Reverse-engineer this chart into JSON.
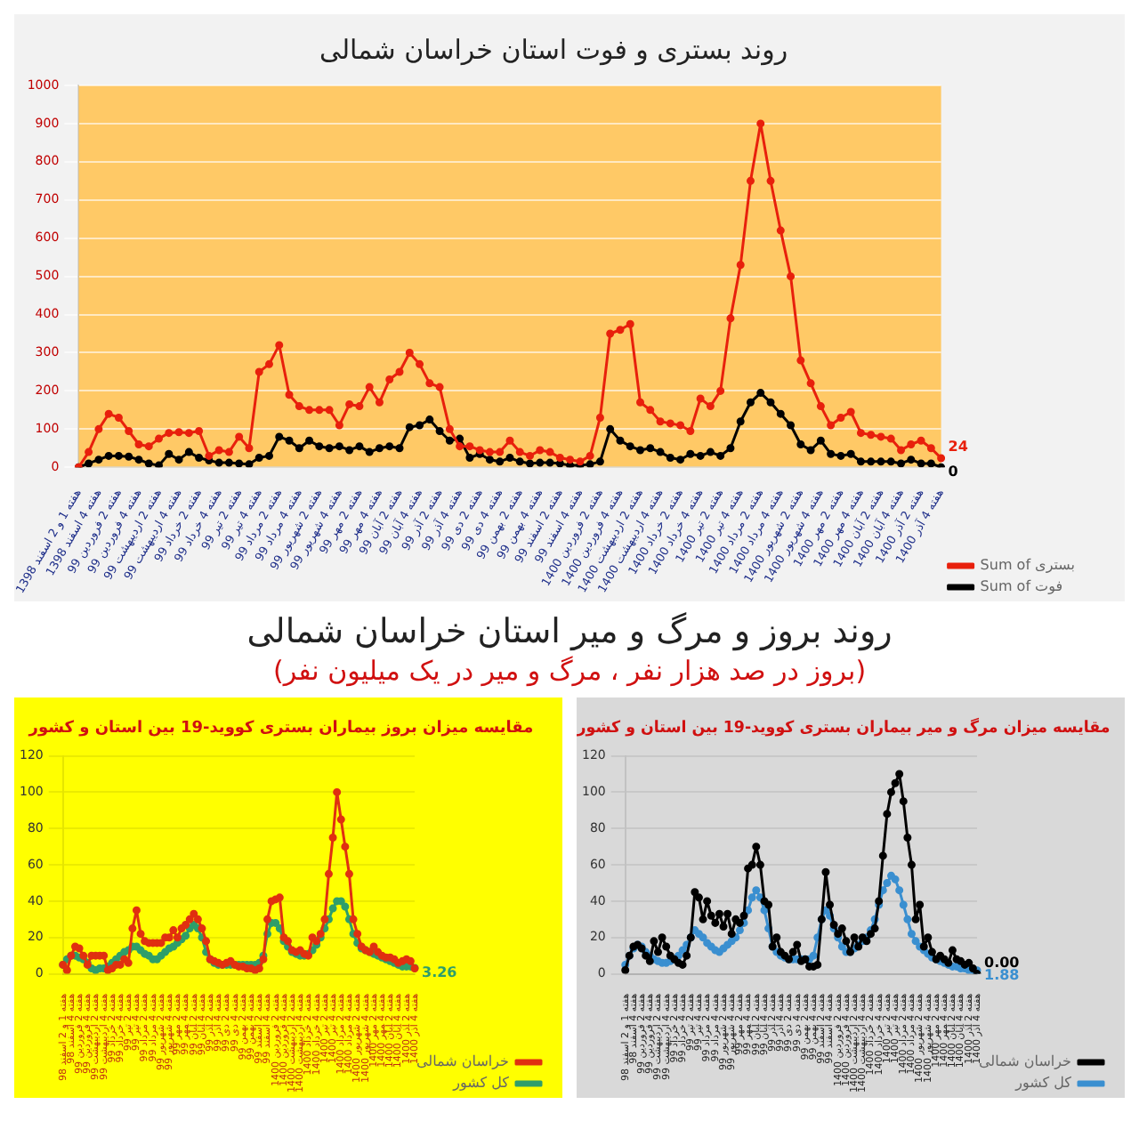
{
  "chart_data": [
    {
      "type": "line",
      "title": "روند بستری و فوت استان خراسان شمالی",
      "categories": [
        "هفته 1 و 2 اسفند 1398",
        null,
        "هفته 4 اسفند 1398",
        null,
        "هفته 2 فروردین 99",
        null,
        "هفته 4 فروردین 99",
        null,
        "هفته 2 اردیبهشت 99",
        null,
        "هفته 4 اردیبهشت 99",
        null,
        "هفته 2 خرداد 99",
        null,
        "هفته 4 خرداد 99",
        null,
        "هفته 2 تیر 99",
        null,
        "هفته 4 تیر 99",
        null,
        "هفته 2 مرداد 99",
        null,
        "هفته 4 مرداد 99",
        null,
        "هفته 2 شهریور 99",
        null,
        "هفته 4 شهریور 99",
        null,
        "هفته 2 مهر 99",
        null,
        "هفته 4 مهر 99",
        null,
        "هفته 2 آبان 99",
        null,
        "هفته 4 آبان 99",
        null,
        "هفته 2 آذر 99",
        null,
        "هفته 4 آذر 99",
        null,
        "هفته 2 دی 99",
        null,
        "هفته 4 دی 99",
        null,
        "هفته 2 بهمن 99",
        null,
        "هفته 4 بهمن 99",
        null,
        "هفته 2 اسفند 99",
        null,
        "هفته 4 اسفند 99",
        null,
        "هفته 2 فروردین 1400",
        null,
        "هفته 4 فروردین 1400",
        null,
        "هفته 2 اردیبهشت 1400",
        null,
        "هفته 4 اردیبهشت 1400",
        null,
        "هفته 2 خرداد 1400",
        null,
        "هفته 4 خرداد 1400",
        null,
        "هفته 2 تیر 1400",
        null,
        "هفته 4 تیر 1400",
        null,
        "هفته 2 مرداد 1400",
        null,
        "هفته 4 مرداد 1400",
        null,
        "هفته 2 شهریور 1400",
        null,
        "هفته 4 شهریور 1400",
        null,
        "هفته 2 مهر 1400",
        null,
        "هفته 4 مهر 1400",
        null,
        "هفته 2 آبان 1400",
        null,
        "هفته 4 آبان 1400",
        null,
        "هفته 2 آذر 1400",
        null,
        "هفته 4 آذر 1400"
      ],
      "ylim": [
        0,
        1000
      ],
      "yticks": [
        0,
        100,
        200,
        300,
        400,
        500,
        600,
        700,
        800,
        900,
        1000
      ],
      "grid": "y",
      "legend": "bottom right",
      "marker": "circle",
      "series": [
        {
          "name": "Sum of بستری",
          "color": "#e8200c",
          "values": [
            0,
            40,
            100,
            140,
            130,
            95,
            60,
            55,
            75,
            90,
            92,
            90,
            95,
            30,
            45,
            40,
            80,
            50,
            250,
            270,
            320,
            190,
            160,
            150,
            150,
            150,
            110,
            165,
            160,
            210,
            170,
            230,
            250,
            300,
            270,
            220,
            210,
            100,
            55,
            55,
            45,
            40,
            40,
            70,
            40,
            30,
            45,
            40,
            25,
            20,
            15,
            30,
            130,
            350,
            360,
            375,
            170,
            150,
            120,
            115,
            110,
            95,
            180,
            160,
            200,
            390,
            530,
            750,
            900,
            750,
            620,
            500,
            280,
            220,
            160,
            110,
            130,
            145,
            90,
            85,
            80,
            75,
            45,
            60,
            70,
            50,
            24
          ],
          "value_labels": [
            null,
            null,
            null,
            null,
            null,
            null,
            null,
            null,
            null,
            null,
            null,
            null,
            null,
            null,
            null,
            null,
            null,
            null,
            null,
            null,
            null,
            null,
            null,
            null,
            null,
            null,
            null,
            null,
            null,
            null,
            null,
            null,
            null,
            null,
            null,
            null,
            null,
            null,
            null,
            null,
            null,
            null,
            null,
            null,
            null,
            null,
            null,
            null,
            null,
            null,
            null,
            null,
            null,
            null,
            null,
            null,
            null,
            null,
            null,
            null,
            null,
            null,
            null,
            null,
            null,
            null,
            null,
            null,
            null,
            null,
            null,
            null,
            null,
            null,
            null,
            null,
            null,
            null,
            null,
            null,
            null,
            null,
            null,
            null,
            null,
            null,
            "24"
          ]
        },
        {
          "name": "Sum of فوت",
          "color": "#000000",
          "values": [
            0,
            10,
            20,
            30,
            30,
            28,
            20,
            10,
            5,
            35,
            20,
            40,
            25,
            18,
            12,
            12,
            10,
            8,
            25,
            30,
            80,
            70,
            50,
            70,
            55,
            50,
            55,
            45,
            55,
            40,
            50,
            55,
            50,
            105,
            110,
            125,
            95,
            70,
            75,
            25,
            35,
            20,
            15,
            25,
            15,
            10,
            12,
            12,
            10,
            5,
            5,
            8,
            15,
            100,
            70,
            55,
            45,
            50,
            40,
            25,
            20,
            35,
            30,
            40,
            30,
            50,
            120,
            170,
            195,
            170,
            140,
            110,
            60,
            45,
            70,
            35,
            30,
            35,
            15,
            15,
            15,
            15,
            10,
            20,
            10,
            10,
            0
          ],
          "value_labels": [
            null,
            null,
            null,
            null,
            null,
            null,
            null,
            null,
            null,
            null,
            null,
            null,
            null,
            null,
            null,
            null,
            null,
            null,
            null,
            null,
            null,
            null,
            null,
            null,
            null,
            null,
            null,
            null,
            null,
            null,
            null,
            null,
            null,
            null,
            null,
            null,
            null,
            null,
            null,
            null,
            null,
            null,
            null,
            null,
            null,
            null,
            null,
            null,
            null,
            null,
            null,
            null,
            null,
            null,
            null,
            null,
            null,
            null,
            null,
            null,
            null,
            null,
            null,
            null,
            null,
            null,
            null,
            null,
            null,
            null,
            null,
            null,
            null,
            null,
            null,
            null,
            null,
            null,
            null,
            null,
            null,
            null,
            null,
            null,
            null,
            null,
            "0"
          ]
        }
      ]
    },
    {
      "type": "other",
      "title": "روند بروز و مرگ و میر استان خراسان شمالی",
      "subtitle": "(بروز در صد هزار نفر ، مرگ و میر در یک میلیون نفر)"
    },
    {
      "type": "line",
      "title": "مقایسه میزان بروز بیماران بستری کووید-19 بین استان و کشور",
      "categories": [
        "هفته 1 و 2 اسفند 98",
        null,
        "هفته 4 اسفند 98",
        null,
        "هفته 2 فروردین 99",
        null,
        "هفته 4 فروردین 99",
        null,
        "هفته 2 اردیبهشت 99",
        null,
        "هفته 4 اردیبهشت 99",
        null,
        "هفته 2 خرداد 99",
        null,
        "هفته 4 خرداد 99",
        null,
        "هفته 2 تیر 99",
        null,
        "هفته 4 تیر 99",
        null,
        "هفته 2 مرداد 99",
        null,
        "هفته 4 مرداد 99",
        null,
        "هفته 2 شهریور 99",
        null,
        "هفته 4 شهریور 99",
        null,
        "هفته 2 مهر 99",
        null,
        "هفته 4 مهر 99",
        null,
        "هفته 2 آبان 99",
        null,
        "هفته 4 آبان 99",
        null,
        "هفته 2 آذر 99",
        null,
        "هفته 4 آذر 99",
        null,
        "هفته 2 دی 99",
        null,
        "هفته 4 دی 99",
        null,
        "هفته 2 بهمن 99",
        null,
        "هفته 4 بهمن 99",
        null,
        "هفته 2 اسفند 99",
        null,
        "هفته 4 اسفند 99",
        null,
        "هفته 2 فروردین 1400",
        null,
        "هفته 4 فروردین 1400",
        null,
        "هفته 2 اردیبهشت 1400",
        null,
        "هفته 4 اردیبهشت 1400",
        null,
        "هفته 2 خرداد 1400",
        null,
        "هفته 4 خرداد 1400",
        null,
        "هفته 2 تیر 1400",
        null,
        "هفته 4 تیر 1400",
        null,
        "هفته 2 مرداد 1400",
        null,
        "هفته 4 مرداد 1400",
        null,
        "هفته 2 شهریور 1400",
        null,
        "هفته 4 شهریور 1400",
        null,
        "هفته 2 مهر 1400",
        null,
        "هفته 4 مهر 1400",
        null,
        "هفته 2 آبان 1400",
        null,
        "هفته 4 آبان 1400",
        null,
        "هفته 2 آذر 1400",
        null,
        "هفته 4 آذر 1400"
      ],
      "ylim": [
        0,
        120
      ],
      "yticks": [
        0,
        20,
        40,
        60,
        80,
        100,
        120
      ],
      "grid": "y",
      "legend": "bottom right",
      "marker": "circle",
      "series": [
        {
          "name": "خراسان شمالی",
          "color": "#e03010",
          "values": [
            5,
            2,
            10,
            15,
            14,
            10,
            5,
            10,
            10,
            10,
            10,
            2,
            3,
            5,
            5,
            8,
            6,
            25,
            35,
            22,
            18,
            17,
            17,
            17,
            17,
            20,
            20,
            24,
            20,
            25,
            27,
            30,
            33,
            30,
            25,
            18,
            8,
            7,
            6,
            5,
            6,
            7,
            5,
            4,
            4,
            3,
            3,
            2,
            3,
            8,
            30,
            40,
            41,
            42,
            20,
            18,
            13,
            12,
            13,
            11,
            10,
            20,
            18,
            22,
            30,
            55,
            75,
            100,
            85,
            70,
            55,
            30,
            22,
            15,
            13,
            12,
            15,
            12,
            10,
            9,
            9,
            8,
            6,
            7,
            8,
            7,
            3
          ]
        },
        {
          "name": "کل کشور",
          "color": "#2e9e6a",
          "values": [
            5,
            8,
            10,
            10,
            9,
            8,
            6,
            3,
            2,
            3,
            3,
            4,
            6,
            8,
            10,
            12,
            13,
            15,
            15,
            13,
            11,
            10,
            8,
            8,
            10,
            12,
            14,
            15,
            17,
            19,
            21,
            25,
            27,
            25,
            20,
            12,
            8,
            6,
            5,
            5,
            5,
            5,
            5,
            5,
            5,
            5,
            5,
            5,
            6,
            10,
            22,
            28,
            28,
            25,
            18,
            15,
            12,
            11,
            10,
            10,
            11,
            13,
            16,
            20,
            25,
            30,
            36,
            40,
            40,
            37,
            30,
            22,
            17,
            14,
            13,
            12,
            11,
            10,
            9,
            8,
            7,
            6,
            5,
            4,
            4,
            4,
            3.26
          ],
          "value_labels": [
            null,
            null,
            null,
            null,
            null,
            null,
            null,
            null,
            null,
            null,
            null,
            null,
            null,
            null,
            null,
            null,
            null,
            null,
            null,
            null,
            null,
            null,
            null,
            null,
            null,
            null,
            null,
            null,
            null,
            null,
            null,
            null,
            null,
            null,
            null,
            null,
            null,
            null,
            null,
            null,
            null,
            null,
            null,
            null,
            null,
            null,
            null,
            null,
            null,
            null,
            null,
            null,
            null,
            null,
            null,
            null,
            null,
            null,
            null,
            null,
            null,
            null,
            null,
            null,
            null,
            null,
            null,
            null,
            null,
            null,
            null,
            null,
            null,
            null,
            null,
            null,
            null,
            null,
            null,
            null,
            null,
            null,
            null,
            null,
            null,
            null,
            "3.26"
          ]
        }
      ]
    },
    {
      "type": "line",
      "title": "مقایسه میزان مرگ و میر بیماران بستری کووید-19 بین استان و کشور",
      "categories": [
        "هفته 1 و 2 اسفند 98",
        null,
        "هفته 4 اسفند 98",
        null,
        "هفته 2 فروردین 99",
        null,
        "هفته 4 فروردین 99",
        null,
        "هفته 2 اردیبهشت 99",
        null,
        "هفته 4 اردیبهشت 99",
        null,
        "هفته 2 خرداد 99",
        null,
        "هفته 4 خرداد 99",
        null,
        "هفته 2 تیر 99",
        null,
        "هفته 4 تیر 99",
        null,
        "هفته 2 مرداد 99",
        null,
        "هفته 4 مرداد 99",
        null,
        "هفته 2 شهریور 99",
        null,
        "هفته 4 شهریور 99",
        null,
        "هفته 2 مهر 99",
        null,
        "هفته 4 مهر 99",
        null,
        "هفته 2 آبان 99",
        null,
        "هفته 4 آبان 99",
        null,
        "هفته 2 آذر 99",
        null,
        "هفته 4 آذر 99",
        null,
        "هفته 2 دی 99",
        null,
        "هفته 4 دی 99",
        null,
        "هفته 2 بهمن 99",
        null,
        "هفته 4 بهمن 99",
        null,
        "هفته 2 اسفند 99",
        null,
        "هفته 4 اسفند 99",
        null,
        "هفته 2 فروردین 1400",
        null,
        "هفته 4 فروردین 1400",
        null,
        "هفته 2 اردیبهشت 1400",
        null,
        "هفته 4 اردیبهشت 1400",
        null,
        "هفته 2 خرداد 1400",
        null,
        "هفته 4 خرداد 1400",
        null,
        "هفته 2 تیر 1400",
        null,
        "هفته 4 تیر 1400",
        null,
        "هفته 2 مرداد 1400",
        null,
        "هفته 4 مرداد 1400",
        null,
        "هفته 2 شهریور 1400",
        null,
        "هفته 4 شهریور 1400",
        null,
        "هفته 2 مهر 1400",
        null,
        "هفته 4 مهر 1400",
        null,
        "هفته 2 آبان 1400",
        null,
        "هفته 4 آبان 1400",
        null,
        "هفته 2 آذر 1400",
        null,
        "هفته 4 آذر 1400"
      ],
      "ylim": [
        0,
        120
      ],
      "yticks": [
        0,
        20,
        40,
        60,
        80,
        100,
        120
      ],
      "grid": "y",
      "legend": "bottom right",
      "marker": "circle",
      "series": [
        {
          "name": "خراسان شمالی",
          "color": "#000000",
          "values": [
            2,
            10,
            15,
            16,
            14,
            10,
            7,
            18,
            12,
            20,
            15,
            10,
            8,
            6,
            5,
            10,
            20,
            45,
            42,
            30,
            40,
            32,
            28,
            33,
            26,
            33,
            22,
            30,
            28,
            32,
            58,
            60,
            70,
            60,
            40,
            38,
            15,
            20,
            12,
            10,
            8,
            12,
            16,
            7,
            8,
            4,
            4,
            5,
            30,
            56,
            38,
            27,
            22,
            25,
            18,
            12,
            20,
            15,
            20,
            18,
            22,
            25,
            40,
            65,
            88,
            100,
            105,
            110,
            95,
            75,
            60,
            30,
            38,
            15,
            20,
            12,
            8,
            10,
            8,
            6,
            13,
            8,
            7,
            5,
            6,
            3,
            0
          ],
          "value_labels": [
            null,
            null,
            null,
            null,
            null,
            null,
            null,
            null,
            null,
            null,
            null,
            null,
            null,
            null,
            null,
            null,
            null,
            null,
            null,
            null,
            null,
            null,
            null,
            null,
            null,
            null,
            null,
            null,
            null,
            null,
            null,
            null,
            null,
            null,
            null,
            null,
            null,
            null,
            null,
            null,
            null,
            null,
            null,
            null,
            null,
            null,
            null,
            null,
            null,
            null,
            null,
            null,
            null,
            null,
            null,
            null,
            null,
            null,
            null,
            null,
            null,
            null,
            null,
            null,
            null,
            null,
            null,
            null,
            null,
            null,
            null,
            null,
            null,
            null,
            null,
            null,
            null,
            null,
            null,
            null,
            null,
            null,
            null,
            null,
            null,
            null,
            "0.00"
          ]
        },
        {
          "name": "کل کشور",
          "color": "#3a8fd0",
          "values": [
            5,
            10,
            14,
            16,
            15,
            12,
            10,
            8,
            7,
            6,
            6,
            7,
            8,
            10,
            13,
            16,
            20,
            24,
            22,
            20,
            17,
            15,
            13,
            12,
            14,
            16,
            18,
            20,
            24,
            28,
            35,
            42,
            46,
            42,
            35,
            25,
            15,
            12,
            10,
            9,
            8,
            8,
            8,
            8,
            8,
            8,
            10,
            20,
            30,
            35,
            32,
            25,
            20,
            15,
            12,
            12,
            14,
            16,
            18,
            20,
            24,
            30,
            38,
            46,
            50,
            54,
            52,
            46,
            38,
            30,
            22,
            18,
            15,
            13,
            11,
            9,
            8,
            7,
            6,
            5,
            4,
            4,
            3,
            3,
            2,
            2,
            1.88
          ],
          "value_labels": [
            null,
            null,
            null,
            null,
            null,
            null,
            null,
            null,
            null,
            null,
            null,
            null,
            null,
            null,
            null,
            null,
            null,
            null,
            null,
            null,
            null,
            null,
            null,
            null,
            null,
            null,
            null,
            null,
            null,
            null,
            null,
            null,
            null,
            null,
            null,
            null,
            null,
            null,
            null,
            null,
            null,
            null,
            null,
            null,
            null,
            null,
            null,
            null,
            null,
            null,
            null,
            null,
            null,
            null,
            null,
            null,
            null,
            null,
            null,
            null,
            null,
            null,
            null,
            null,
            null,
            null,
            null,
            null,
            null,
            null,
            null,
            null,
            null,
            null,
            null,
            null,
            null,
            null,
            null,
            null,
            null,
            null,
            null,
            null,
            null,
            null,
            "1.88"
          ]
        }
      ]
    }
  ]
}
